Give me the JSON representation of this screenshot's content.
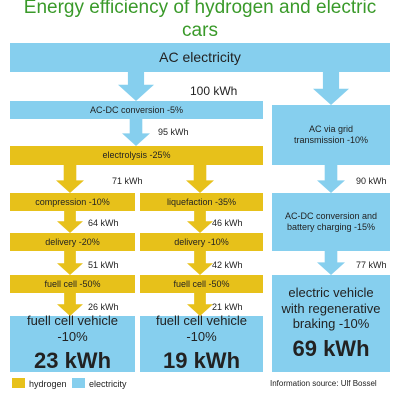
{
  "title": "Energy efficiency of hydrogen and electric cars",
  "source": {
    "label": "AC electricity",
    "amount": "100 kWh"
  },
  "hydrogen_path": {
    "conversion": {
      "label": "AC-DC conversion -5%",
      "amount": "95 kWh"
    },
    "electrolysis": {
      "label": "electrolysis -25%",
      "amount": "71 kWh"
    },
    "compressed": {
      "steps": [
        {
          "label": "compression -10%",
          "amount": "64 kWh"
        },
        {
          "label": "delivery -20%",
          "amount": "51 kWh"
        },
        {
          "label": "fuell cell -50%",
          "amount": "26 kWh"
        }
      ],
      "vehicle": {
        "label": "fuell cell vehicle -10%",
        "result": "23 kWh"
      }
    },
    "liquefied": {
      "steps": [
        {
          "label": "liquefaction -35%",
          "amount": "46 kWh"
        },
        {
          "label": "delivery -10%",
          "amount": "42 kWh"
        },
        {
          "label": "fuell cell -50%",
          "amount": "21 kWh"
        }
      ],
      "vehicle": {
        "label": "fuell cell vehicle -10%",
        "result": "19 kWh"
      }
    }
  },
  "electric_path": {
    "steps": [
      {
        "label": "AC via grid transmission -10%",
        "amount": "90 kWh"
      },
      {
        "label": "AC-DC conversion and battery charging -15%",
        "amount": "77 kWh"
      }
    ],
    "vehicle": {
      "label": "electric vehicle with regenerative braking -10%",
      "result": "69 kWh"
    }
  },
  "legend": {
    "hydrogen": "hydrogen",
    "electricity": "electricity"
  },
  "credit": "Information source: Ulf Bossel"
}
